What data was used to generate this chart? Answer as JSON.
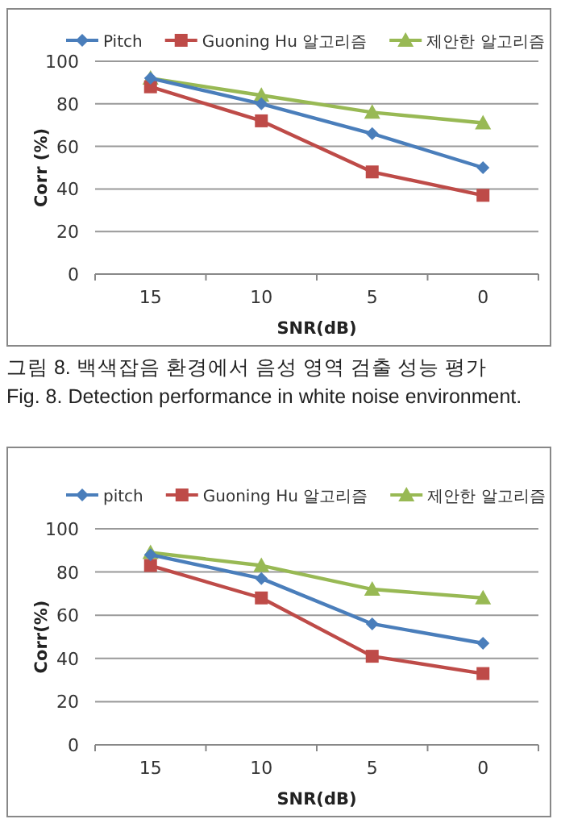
{
  "chart_data": [
    {
      "type": "line",
      "xlabel": "SNR(dB)",
      "ylabel": "Corr (%)",
      "categories": [
        "15",
        "10",
        "5",
        "0"
      ],
      "ylim": [
        0,
        100
      ],
      "yticks": [
        0,
        20,
        40,
        60,
        80,
        100
      ],
      "grid": "y",
      "legend": "top",
      "series": [
        {
          "name": "Pitch",
          "color": "#4a7ebb",
          "marker": "diamond",
          "values": [
            92,
            80,
            66,
            50
          ]
        },
        {
          "name": "Guoning Hu 알고리즘",
          "color": "#be4b48",
          "marker": "square",
          "values": [
            88,
            72,
            48,
            37
          ]
        },
        {
          "name": "제안한 알고리즘",
          "color": "#98b954",
          "marker": "triangle",
          "values": [
            92,
            84,
            76,
            71
          ]
        }
      ],
      "annotations": [
        "그림 8.  백색잡음 환경에서 음성 영역 검출 성능 평가",
        "Fig. 8.  Detection performance in white noise environment."
      ]
    },
    {
      "type": "line",
      "xlabel": "SNR(dB)",
      "ylabel": "Corr(%)",
      "categories": [
        "15",
        "10",
        "5",
        "0"
      ],
      "ylim": [
        0,
        100
      ],
      "yticks": [
        0,
        20,
        40,
        60,
        80,
        100
      ],
      "grid": "y",
      "legend": "top",
      "series": [
        {
          "name": "pitch",
          "color": "#4a7ebb",
          "marker": "diamond",
          "values": [
            88,
            77,
            56,
            47
          ]
        },
        {
          "name": "Guoning Hu 알고리즘",
          "color": "#be4b48",
          "marker": "square",
          "values": [
            83,
            68,
            41,
            33
          ]
        },
        {
          "name": "제안한 알고리즘",
          "color": "#98b954",
          "marker": "triangle",
          "values": [
            89,
            83,
            72,
            68
          ]
        }
      ]
    }
  ]
}
